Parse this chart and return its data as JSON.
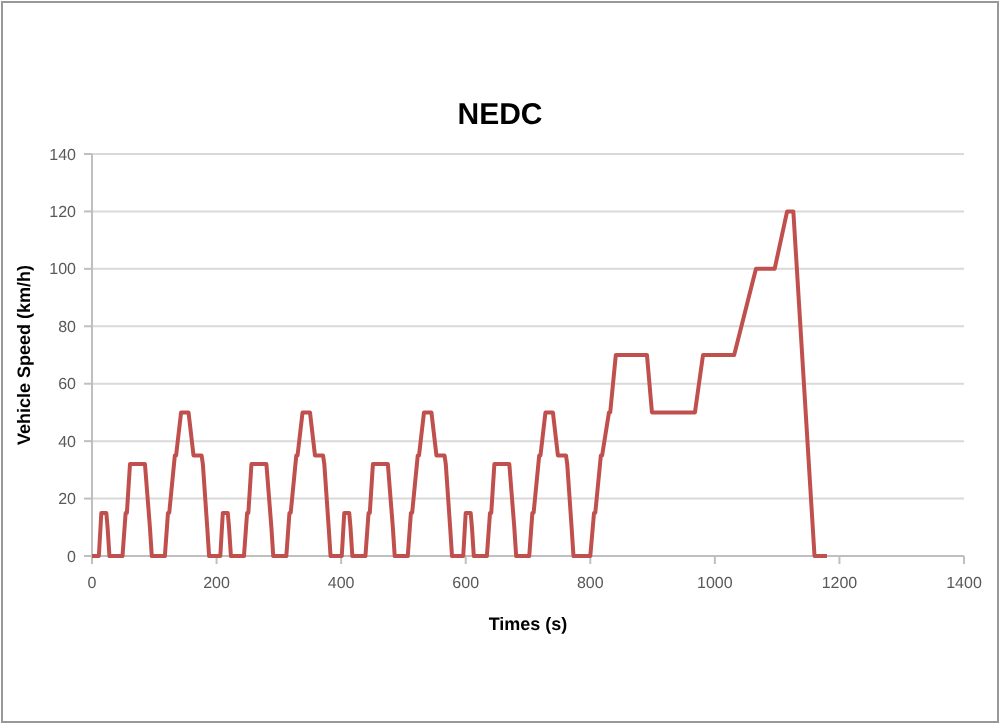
{
  "chart_data": {
    "type": "line",
    "title": "NEDC",
    "xlabel": "Times (s)",
    "ylabel": "Vehicle Speed (km/h)",
    "x": [
      0,
      11,
      15,
      23,
      25,
      28,
      49,
      54,
      56,
      61,
      85,
      93,
      96,
      117,
      122,
      124,
      133,
      135,
      143,
      155,
      163,
      176,
      178,
      185,
      188,
      195,
      206,
      210,
      218,
      220,
      223,
      244,
      249,
      251,
      256,
      280,
      288,
      291,
      312,
      317,
      319,
      328,
      330,
      338,
      350,
      358,
      371,
      373,
      380,
      383,
      390,
      401,
      405,
      413,
      415,
      418,
      439,
      444,
      446,
      451,
      475,
      483,
      486,
      507,
      512,
      514,
      523,
      525,
      533,
      545,
      553,
      566,
      568,
      575,
      578,
      585,
      596,
      600,
      608,
      610,
      613,
      634,
      639,
      641,
      646,
      670,
      678,
      681,
      702,
      707,
      709,
      718,
      720,
      728,
      740,
      748,
      761,
      763,
      770,
      773,
      780,
      800,
      806,
      808,
      817,
      819,
      830,
      832,
      841,
      891,
      899,
      968,
      981,
      1031,
      1066,
      1096,
      1116,
      1126,
      1160,
      1180
    ],
    "series": [
      {
        "color": "#c0504d",
        "values": [
          0,
          0,
          15,
          15,
          10,
          0,
          0,
          15,
          15,
          32,
          32,
          10,
          0,
          0,
          15,
          15,
          35,
          35,
          50,
          50,
          35,
          35,
          32,
          10,
          0,
          0,
          0,
          15,
          15,
          10,
          0,
          0,
          15,
          15,
          32,
          32,
          10,
          0,
          0,
          15,
          15,
          35,
          35,
          50,
          50,
          35,
          35,
          32,
          10,
          0,
          0,
          0,
          15,
          15,
          10,
          0,
          0,
          15,
          15,
          32,
          32,
          10,
          0,
          0,
          15,
          15,
          35,
          35,
          50,
          50,
          35,
          35,
          32,
          10,
          0,
          0,
          0,
          15,
          15,
          10,
          0,
          0,
          15,
          15,
          32,
          32,
          10,
          0,
          0,
          15,
          15,
          35,
          35,
          50,
          50,
          35,
          35,
          32,
          10,
          0,
          0,
          0,
          15,
          15,
          35,
          35,
          50,
          50,
          70,
          70,
          50,
          50,
          70,
          70,
          100,
          100,
          120,
          120,
          0,
          0
        ]
      }
    ],
    "xlim": [
      0,
      1400
    ],
    "xticks": [
      0,
      200,
      400,
      600,
      800,
      1000,
      1200,
      1400
    ],
    "ylim": [
      0,
      140
    ],
    "yticks": [
      0,
      20,
      40,
      60,
      80,
      100,
      120,
      140
    ],
    "grid": "y",
    "marker": "none",
    "line_style": "solid"
  }
}
